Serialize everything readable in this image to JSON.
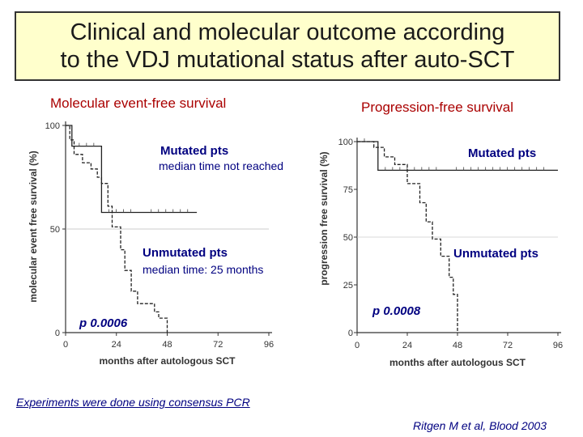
{
  "title": {
    "line1": "Clinical and molecular outcome according",
    "line2": "to the VDJ mutational status after auto-SCT"
  },
  "footnote": "Experiments were done using consensus PCR",
  "citation": "Ritgen M et al, Blood 2003",
  "colors": {
    "title_bg": "#ffffcc",
    "subtitle": "#aa0000",
    "annotation": "#000080",
    "curve": "#222222"
  },
  "chart_data": [
    {
      "type": "line",
      "subtitle": "Molecular event-free survival",
      "xlabel": "months after autologous SCT",
      "ylabel": "molecular event free survival (%)",
      "xlim": [
        0,
        96
      ],
      "ylim": [
        0,
        100
      ],
      "xticks": [
        "0",
        "24",
        "48",
        "72",
        "96"
      ],
      "yticks": [
        "0",
        "50",
        "100"
      ],
      "series": [
        {
          "name": "Mutated pts",
          "style": "solid",
          "x": [
            0,
            3,
            3,
            17,
            17,
            37,
            37,
            62
          ],
          "y": [
            100,
            100,
            90,
            90,
            58,
            58,
            58,
            58
          ]
        },
        {
          "name": "Unmutated pts",
          "style": "dashed",
          "x": [
            0,
            2,
            2,
            4,
            4,
            8,
            8,
            12,
            12,
            15,
            15,
            17,
            17,
            20,
            20,
            22,
            22,
            26,
            26,
            28,
            28,
            31,
            31,
            34,
            34,
            42,
            42,
            44,
            44,
            48,
            48
          ],
          "y": [
            100,
            100,
            93,
            93,
            86,
            86,
            82,
            82,
            79,
            79,
            75,
            75,
            72,
            72,
            61,
            61,
            51,
            51,
            40,
            40,
            30,
            30,
            20,
            20,
            14,
            14,
            10,
            10,
            7,
            7,
            0
          ]
        }
      ],
      "annotations": [
        {
          "label": "Mutated pts"
        },
        {
          "label": "median time not reached"
        },
        {
          "label": "Unmutated pts"
        },
        {
          "label": "median time: 25 months"
        },
        {
          "label": "p 0.0006"
        }
      ]
    },
    {
      "type": "line",
      "subtitle": "Progression-free survival",
      "xlabel": "months after autologous SCT",
      "ylabel": "progression free survival (%)",
      "xlim": [
        0,
        96
      ],
      "ylim": [
        0,
        100
      ],
      "xticks": [
        "0",
        "24",
        "48",
        "72",
        "96"
      ],
      "yticks": [
        "0",
        "25",
        "50",
        "75",
        "100"
      ],
      "series": [
        {
          "name": "Mutated pts",
          "style": "solid",
          "x": [
            0,
            10,
            10,
            44,
            44,
            96
          ],
          "y": [
            100,
            100,
            85,
            85,
            85,
            85
          ]
        },
        {
          "name": "Unmutated pts",
          "style": "dashed",
          "x": [
            0,
            8,
            8,
            13,
            13,
            18,
            18,
            24,
            24,
            30,
            30,
            33,
            33,
            36,
            36,
            40,
            40,
            44,
            44,
            46,
            46,
            48,
            48
          ],
          "y": [
            100,
            100,
            97,
            97,
            92,
            92,
            88,
            88,
            78,
            78,
            68,
            68,
            58,
            58,
            49,
            49,
            40,
            40,
            29,
            29,
            20,
            20,
            0
          ]
        }
      ],
      "annotations": [
        {
          "label": "Mutated pts"
        },
        {
          "label": "Unmutated pts"
        },
        {
          "label": "p 0.0008"
        }
      ]
    }
  ]
}
